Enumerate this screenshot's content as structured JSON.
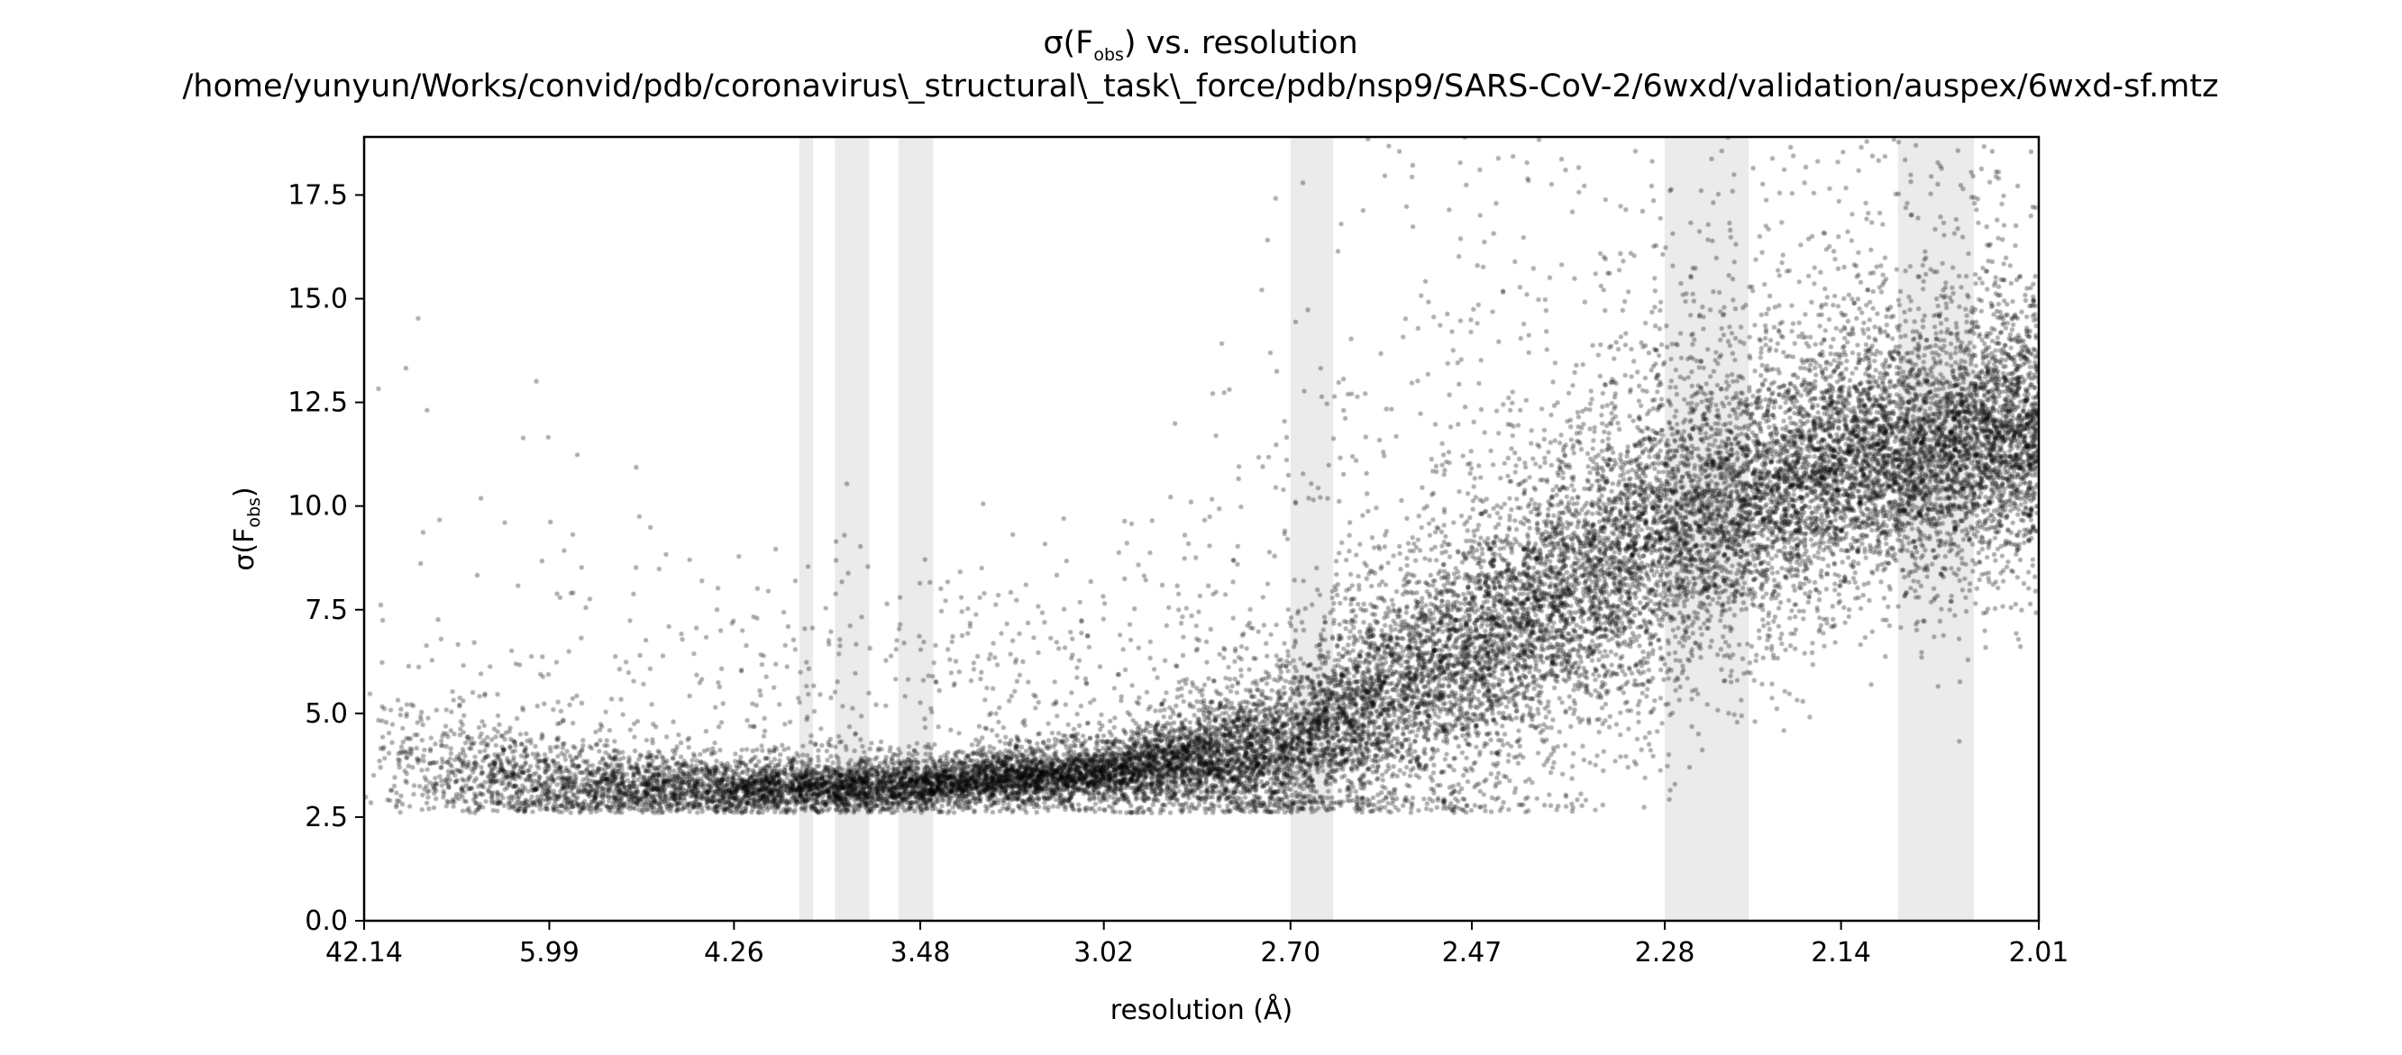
{
  "chart_data": {
    "type": "scatter",
    "title": {
      "line1": {
        "pre": "σ(F",
        "sub": "obs",
        "post": ") vs. resolution"
      },
      "line2": "/home/yunyun/Works/convid/pdb/coronavirus\\_structural\\_task\\_force/pdb/nsp9/SARS-CoV-2/6wxd/validation/auspex/6wxd-sf.mtz"
    },
    "xlabel": "resolution (Å)",
    "ylabel": {
      "pre": "σ(F",
      "sub": "obs",
      "post": ")"
    },
    "x_scale": "1/d^2",
    "x_tick_labels": [
      "42.14",
      "5.99",
      "4.26",
      "3.48",
      "3.02",
      "2.70",
      "2.47",
      "2.28",
      "2.14",
      "2.01"
    ],
    "xlim": [
      42.14,
      2.01
    ],
    "ylim": [
      0,
      18.9
    ],
    "y_ticks": [
      "0.0",
      "2.5",
      "5.0",
      "7.5",
      "10.0",
      "12.5",
      "15.0",
      "17.5"
    ],
    "grid": false,
    "point_color": "#000000",
    "band_color": "#ebebeb",
    "ice_ring_bands": [
      {
        "d_low": 3.93,
        "d_high": 3.87
      },
      {
        "d_low": 3.78,
        "d_high": 3.65
      },
      {
        "d_low": 3.55,
        "d_high": 3.44
      },
      {
        "d_low": 2.7,
        "d_high": 2.64
      },
      {
        "d_low": 2.28,
        "d_high": 2.21
      },
      {
        "d_low": 2.1,
        "d_high": 2.05
      }
    ],
    "trend": [
      {
        "resolution": 42.14,
        "sigma_median": 4.0,
        "spread": 1.3
      },
      {
        "resolution": 5.99,
        "sigma_median": 3.3,
        "spread": 0.8
      },
      {
        "resolution": 4.26,
        "sigma_median": 3.2,
        "spread": 0.5
      },
      {
        "resolution": 3.48,
        "sigma_median": 3.3,
        "spread": 0.45
      },
      {
        "resolution": 3.02,
        "sigma_median": 3.6,
        "spread": 0.5
      },
      {
        "resolution": 2.7,
        "sigma_median": 4.2,
        "spread": 1.3
      },
      {
        "resolution": 2.47,
        "sigma_median": 6.5,
        "spread": 2.2
      },
      {
        "resolution": 2.28,
        "sigma_median": 9.5,
        "spread": 2.5
      },
      {
        "resolution": 2.14,
        "sigma_median": 11.0,
        "spread": 2.0
      },
      {
        "resolution": 2.01,
        "sigma_median": 11.8,
        "spread": 2.0
      }
    ],
    "approx_point_count": 22000
  }
}
